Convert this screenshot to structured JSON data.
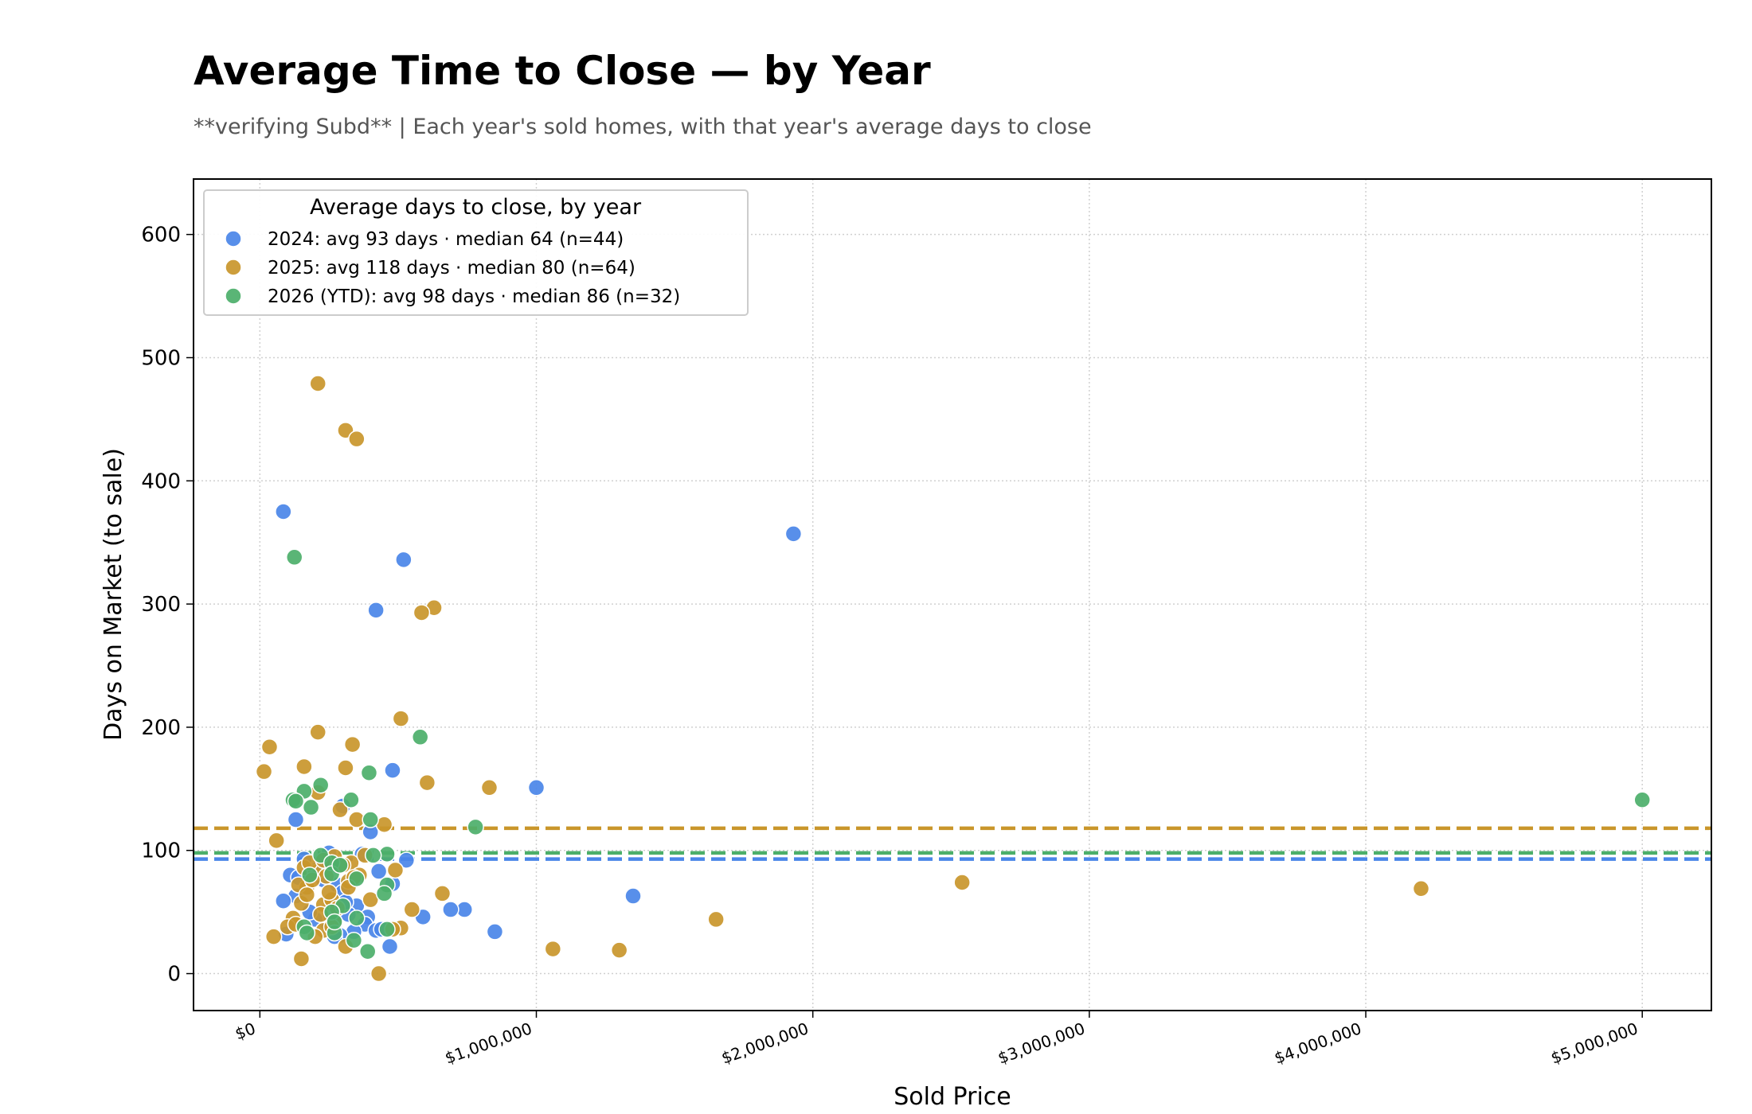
{
  "title": "Average Time to Close — by Year",
  "subtitle": "**verifying Subd**  |  Each year's sold homes, with that year's average days to close",
  "chart_data": {
    "type": "scatter",
    "xlabel": "Sold Price",
    "ylabel": "Days on Market (to sale)",
    "xlim": [
      -240000,
      5250000
    ],
    "ylim": [
      -30,
      645
    ],
    "x_ticks": [
      0,
      1000000,
      2000000,
      3000000,
      4000000,
      5000000
    ],
    "x_tick_labels": [
      "$0",
      "$1,000,000",
      "$2,000,000",
      "$3,000,000",
      "$4,000,000",
      "$5,000,000"
    ],
    "y_ticks": [
      0,
      100,
      200,
      300,
      400,
      500,
      600
    ],
    "y_tick_labels": [
      "0",
      "100",
      "200",
      "300",
      "400",
      "500",
      "600"
    ],
    "grid": true,
    "legend_title": "Average days to close, by year",
    "legend_position": "top-left",
    "series": [
      {
        "name": "2024: avg 93 days  ·  median 64  (n=44)",
        "color": "#4a86e8",
        "average": 93,
        "points": [
          [
            85000,
            375
          ],
          [
            520000,
            336
          ],
          [
            420000,
            295
          ],
          [
            1930000,
            357
          ],
          [
            1000000,
            151
          ],
          [
            480000,
            165
          ],
          [
            1350000,
            63
          ],
          [
            850000,
            34
          ],
          [
            740000,
            52
          ],
          [
            690000,
            52
          ],
          [
            590000,
            46
          ],
          [
            470000,
            22
          ],
          [
            530000,
            92
          ],
          [
            480000,
            73
          ],
          [
            430000,
            83
          ],
          [
            400000,
            115
          ],
          [
            370000,
            97
          ],
          [
            300000,
            136
          ],
          [
            130000,
            125
          ],
          [
            250000,
            98
          ],
          [
            160000,
            93
          ],
          [
            210000,
            85
          ],
          [
            110000,
            80
          ],
          [
            140000,
            78
          ],
          [
            230000,
            76
          ],
          [
            280000,
            72
          ],
          [
            300000,
            66
          ],
          [
            130000,
            63
          ],
          [
            85000,
            59
          ],
          [
            350000,
            55
          ],
          [
            320000,
            48
          ],
          [
            390000,
            46
          ],
          [
            240000,
            42
          ],
          [
            260000,
            38
          ],
          [
            380000,
            40
          ],
          [
            420000,
            35
          ],
          [
            340000,
            34
          ],
          [
            290000,
            31
          ],
          [
            95000,
            32
          ],
          [
            270000,
            30
          ],
          [
            440000,
            36
          ],
          [
            200000,
            44
          ],
          [
            180000,
            50
          ],
          [
            310000,
            58
          ]
        ]
      },
      {
        "name": "2025: avg 118 days  ·  median 80  (n=64)",
        "color": "#c9962b",
        "average": 118,
        "points": [
          [
            210000,
            479
          ],
          [
            310000,
            441
          ],
          [
            350000,
            434
          ],
          [
            630000,
            297
          ],
          [
            585000,
            293
          ],
          [
            510000,
            207
          ],
          [
            210000,
            196
          ],
          [
            35000,
            184
          ],
          [
            335000,
            186
          ],
          [
            15000,
            164
          ],
          [
            310000,
            167
          ],
          [
            160000,
            168
          ],
          [
            605000,
            155
          ],
          [
            830000,
            151
          ],
          [
            210000,
            147
          ],
          [
            350000,
            125
          ],
          [
            450000,
            121
          ],
          [
            60000,
            108
          ],
          [
            330000,
            90
          ],
          [
            380000,
            96
          ],
          [
            270000,
            95
          ],
          [
            160000,
            86
          ],
          [
            200000,
            82
          ],
          [
            240000,
            79
          ],
          [
            320000,
            75
          ],
          [
            2540000,
            74
          ],
          [
            4200000,
            69
          ],
          [
            660000,
            65
          ],
          [
            490000,
            84
          ],
          [
            170000,
            70
          ],
          [
            150000,
            57
          ],
          [
            230000,
            56
          ],
          [
            550000,
            52
          ],
          [
            220000,
            48
          ],
          [
            120000,
            45
          ],
          [
            270000,
            42
          ],
          [
            1650000,
            44
          ],
          [
            100000,
            38
          ],
          [
            510000,
            37
          ],
          [
            480000,
            36
          ],
          [
            230000,
            35
          ],
          [
            50000,
            30
          ],
          [
            310000,
            22
          ],
          [
            1060000,
            20
          ],
          [
            1300000,
            19
          ],
          [
            150000,
            12
          ],
          [
            430000,
            0
          ],
          [
            290000,
            133
          ],
          [
            180000,
            90
          ],
          [
            260000,
            60
          ],
          [
            300000,
            88
          ],
          [
            140000,
            72
          ],
          [
            360000,
            80
          ],
          [
            250000,
            66
          ],
          [
            190000,
            76
          ],
          [
            280000,
            53
          ],
          [
            230000,
            92
          ],
          [
            130000,
            40
          ],
          [
            200000,
            30
          ],
          [
            400000,
            60
          ],
          [
            340000,
            78
          ],
          [
            170000,
            64
          ],
          [
            260000,
            38
          ],
          [
            320000,
            70
          ]
        ]
      },
      {
        "name": "2026 (YTD): avg 98 days  ·  median 86  (n=32)",
        "color": "#4caf6a",
        "average": 98,
        "points": [
          [
            125000,
            338
          ],
          [
            580000,
            192
          ],
          [
            395000,
            163
          ],
          [
            220000,
            153
          ],
          [
            160000,
            148
          ],
          [
            120000,
            141
          ],
          [
            330000,
            141
          ],
          [
            185000,
            135
          ],
          [
            400000,
            125
          ],
          [
            780000,
            119
          ],
          [
            5000000,
            141
          ],
          [
            460000,
            97
          ],
          [
            220000,
            96
          ],
          [
            260000,
            90
          ],
          [
            350000,
            77
          ],
          [
            460000,
            72
          ],
          [
            260000,
            81
          ],
          [
            450000,
            65
          ],
          [
            300000,
            55
          ],
          [
            260000,
            50
          ],
          [
            160000,
            38
          ],
          [
            270000,
            33
          ],
          [
            460000,
            36
          ],
          [
            340000,
            27
          ],
          [
            390000,
            18
          ],
          [
            170000,
            33
          ],
          [
            350000,
            45
          ],
          [
            130000,
            140
          ],
          [
            270000,
            42
          ],
          [
            290000,
            88
          ],
          [
            180000,
            80
          ],
          [
            410000,
            96
          ]
        ]
      }
    ]
  }
}
